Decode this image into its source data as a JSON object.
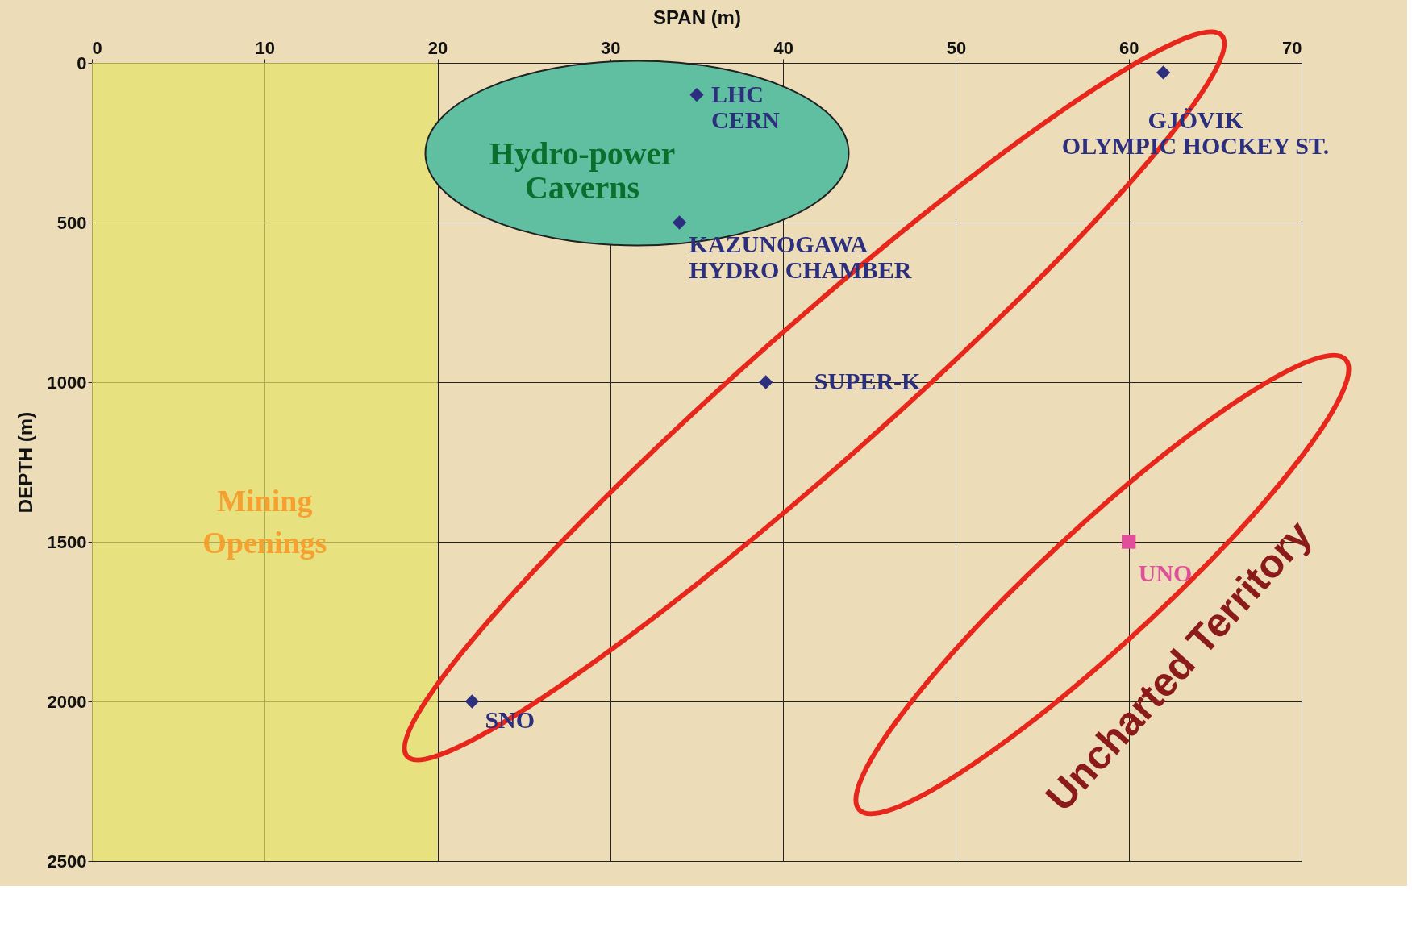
{
  "chart_data": {
    "type": "scatter",
    "xlabel": "SPAN (m)",
    "ylabel": "DEPTH (m)",
    "xlim": [
      0,
      70
    ],
    "xticks": [
      0,
      10,
      20,
      30,
      40,
      50,
      60,
      70
    ],
    "ylim": [
      2500,
      0
    ],
    "yticks": [
      0,
      500,
      1000,
      1500,
      2000,
      2500
    ],
    "grid": true,
    "series": [
      {
        "color": "#2b2f7e",
        "marker": "diamond",
        "x": [
          35,
          34,
          62,
          39,
          22
        ],
        "values": [
          100,
          500,
          30,
          1000,
          2000
        ],
        "value_labels": [
          "LHC\nCERN",
          "KAZUNOGAWA\nHYDRO CHAMBER",
          "GJÖVIK\nOLYMPIC HOCKEY ST.",
          "SUPER-K",
          "SNO"
        ]
      },
      {
        "color": "#e0509a",
        "marker": "square",
        "x": [
          60
        ],
        "values": [
          1500
        ],
        "value_labels": [
          "UNO"
        ]
      }
    ],
    "bands": [
      {
        "axis": "x",
        "from": 0,
        "to": 20,
        "label": "Mining Openings",
        "color": "#e6e266"
      }
    ],
    "annotations": [
      "Hydro-power\nCaverns",
      "Uncharted Territory"
    ]
  }
}
